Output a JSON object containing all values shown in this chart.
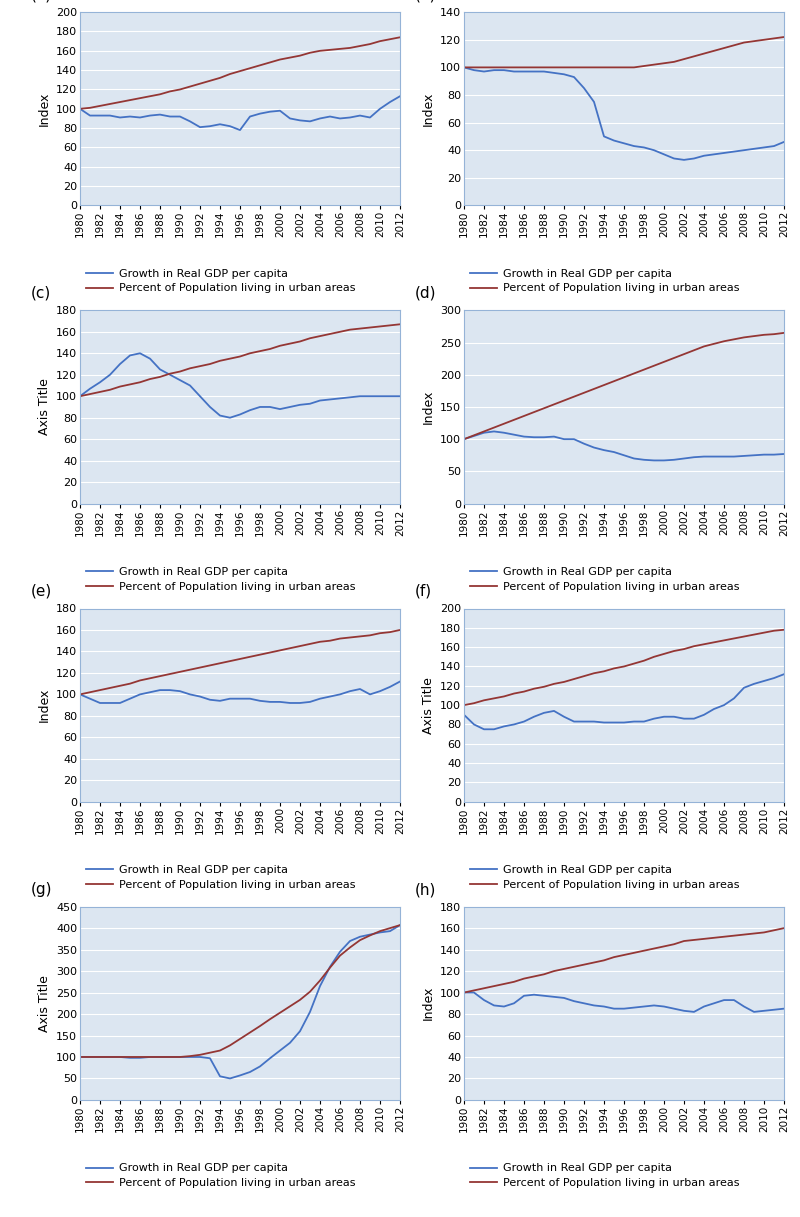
{
  "years": [
    1980,
    1981,
    1982,
    1983,
    1984,
    1985,
    1986,
    1987,
    1988,
    1989,
    1990,
    1991,
    1992,
    1993,
    1994,
    1995,
    1996,
    1997,
    1998,
    1999,
    2000,
    2001,
    2002,
    2003,
    2004,
    2005,
    2006,
    2007,
    2008,
    2009,
    2010,
    2011,
    2012
  ],
  "panels": [
    {
      "label": "a",
      "ylabel": "Index",
      "ylim": [
        0,
        200
      ],
      "yticks": [
        0,
        20,
        40,
        60,
        80,
        100,
        120,
        140,
        160,
        180,
        200
      ],
      "gdp": [
        100,
        93,
        93,
        93,
        91,
        92,
        91,
        93,
        94,
        92,
        92,
        87,
        81,
        82,
        84,
        82,
        78,
        92,
        95,
        97,
        98,
        90,
        88,
        87,
        90,
        92,
        90,
        91,
        93,
        91,
        100,
        107,
        113
      ],
      "urban": [
        100,
        101,
        103,
        105,
        107,
        109,
        111,
        113,
        115,
        118,
        120,
        123,
        126,
        129,
        132,
        136,
        139,
        142,
        145,
        148,
        151,
        153,
        155,
        158,
        160,
        161,
        162,
        163,
        165,
        167,
        170,
        172,
        174
      ]
    },
    {
      "label": "b",
      "ylabel": "Index",
      "ylim": [
        0,
        140
      ],
      "yticks": [
        0,
        20,
        40,
        60,
        80,
        100,
        120,
        140
      ],
      "gdp": [
        100,
        98,
        97,
        98,
        98,
        97,
        97,
        97,
        97,
        96,
        95,
        93,
        85,
        75,
        50,
        47,
        45,
        43,
        42,
        40,
        37,
        34,
        33,
        34,
        36,
        37,
        38,
        39,
        40,
        41,
        42,
        43,
        46
      ],
      "urban": [
        100,
        100,
        100,
        100,
        100,
        100,
        100,
        100,
        100,
        100,
        100,
        100,
        100,
        100,
        100,
        100,
        100,
        100,
        101,
        102,
        103,
        104,
        106,
        108,
        110,
        112,
        114,
        116,
        118,
        119,
        120,
        121,
        122
      ]
    },
    {
      "label": "c",
      "ylabel": "Axis Title",
      "ylim": [
        0,
        180
      ],
      "yticks": [
        0,
        20,
        40,
        60,
        80,
        100,
        120,
        140,
        160,
        180
      ],
      "gdp": [
        100,
        107,
        113,
        120,
        130,
        138,
        140,
        135,
        125,
        120,
        115,
        110,
        100,
        90,
        82,
        80,
        83,
        87,
        90,
        90,
        88,
        90,
        92,
        93,
        96,
        97,
        98,
        99,
        100,
        100,
        100,
        100,
        100
      ],
      "urban": [
        100,
        102,
        104,
        106,
        109,
        111,
        113,
        116,
        118,
        121,
        123,
        126,
        128,
        130,
        133,
        135,
        137,
        140,
        142,
        144,
        147,
        149,
        151,
        154,
        156,
        158,
        160,
        162,
        163,
        164,
        165,
        166,
        167
      ]
    },
    {
      "label": "d",
      "ylabel": "Index",
      "ylim": [
        0,
        300
      ],
      "yticks": [
        0,
        50,
        100,
        150,
        200,
        250,
        300
      ],
      "gdp": [
        100,
        105,
        110,
        112,
        110,
        107,
        104,
        103,
        103,
        104,
        100,
        100,
        93,
        87,
        83,
        80,
        75,
        70,
        68,
        67,
        67,
        68,
        70,
        72,
        73,
        73,
        73,
        73,
        74,
        75,
        76,
        76,
        77
      ],
      "urban": [
        100,
        106,
        112,
        118,
        124,
        130,
        136,
        142,
        148,
        154,
        160,
        166,
        172,
        178,
        184,
        190,
        196,
        202,
        208,
        214,
        220,
        226,
        232,
        238,
        244,
        248,
        252,
        255,
        258,
        260,
        262,
        263,
        265
      ]
    },
    {
      "label": "e",
      "ylabel": "Index",
      "ylim": [
        0,
        180
      ],
      "yticks": [
        0,
        20,
        40,
        60,
        80,
        100,
        120,
        140,
        160,
        180
      ],
      "gdp": [
        100,
        96,
        92,
        92,
        92,
        96,
        100,
        102,
        104,
        104,
        103,
        100,
        98,
        95,
        94,
        96,
        96,
        96,
        94,
        93,
        93,
        92,
        92,
        93,
        96,
        98,
        100,
        103,
        105,
        100,
        103,
        107,
        112
      ],
      "urban": [
        100,
        102,
        104,
        106,
        108,
        110,
        113,
        115,
        117,
        119,
        121,
        123,
        125,
        127,
        129,
        131,
        133,
        135,
        137,
        139,
        141,
        143,
        145,
        147,
        149,
        150,
        152,
        153,
        154,
        155,
        157,
        158,
        160
      ]
    },
    {
      "label": "f",
      "ylabel": "Axis Title",
      "ylim": [
        0,
        200
      ],
      "yticks": [
        0,
        20,
        40,
        60,
        80,
        100,
        120,
        140,
        160,
        180,
        200
      ],
      "gdp": [
        90,
        80,
        75,
        75,
        78,
        80,
        83,
        88,
        92,
        94,
        88,
        83,
        83,
        83,
        82,
        82,
        82,
        83,
        83,
        86,
        88,
        88,
        86,
        86,
        90,
        96,
        100,
        107,
        118,
        122,
        125,
        128,
        132
      ],
      "urban": [
        100,
        102,
        105,
        107,
        109,
        112,
        114,
        117,
        119,
        122,
        124,
        127,
        130,
        133,
        135,
        138,
        140,
        143,
        146,
        150,
        153,
        156,
        158,
        161,
        163,
        165,
        167,
        169,
        171,
        173,
        175,
        177,
        178
      ]
    },
    {
      "label": "g",
      "ylabel": "Axis Title",
      "ylim": [
        0,
        450
      ],
      "yticks": [
        0,
        50,
        100,
        150,
        200,
        250,
        300,
        350,
        400,
        450
      ],
      "gdp": [
        100,
        100,
        100,
        100,
        100,
        98,
        98,
        100,
        100,
        100,
        100,
        100,
        100,
        97,
        55,
        50,
        57,
        65,
        78,
        97,
        115,
        133,
        160,
        205,
        265,
        310,
        345,
        370,
        380,
        385,
        390,
        393,
        407
      ],
      "urban": [
        100,
        100,
        100,
        100,
        100,
        100,
        100,
        100,
        100,
        100,
        100,
        102,
        105,
        110,
        115,
        127,
        142,
        157,
        172,
        188,
        203,
        218,
        233,
        252,
        278,
        308,
        336,
        355,
        372,
        383,
        393,
        400,
        407
      ]
    },
    {
      "label": "h",
      "ylabel": "Index",
      "ylim": [
        0,
        180
      ],
      "yticks": [
        0,
        20,
        40,
        60,
        80,
        100,
        120,
        140,
        160,
        180
      ],
      "gdp": [
        100,
        100,
        93,
        88,
        87,
        90,
        97,
        98,
        97,
        96,
        95,
        92,
        90,
        88,
        87,
        85,
        85,
        86,
        87,
        88,
        87,
        85,
        83,
        82,
        87,
        90,
        93,
        93,
        87,
        82,
        83,
        84,
        85
      ],
      "urban": [
        100,
        102,
        104,
        106,
        108,
        110,
        113,
        115,
        117,
        120,
        122,
        124,
        126,
        128,
        130,
        133,
        135,
        137,
        139,
        141,
        143,
        145,
        148,
        149,
        150,
        151,
        152,
        153,
        154,
        155,
        156,
        158,
        160
      ]
    }
  ],
  "gdp_color": "#4472c4",
  "urban_color": "#943634",
  "gdp_label": "Growth in Real GDP per capita",
  "urban_label": "Percent of Population living in urban areas",
  "xticks": [
    1980,
    1982,
    1984,
    1986,
    1988,
    1990,
    1992,
    1994,
    1996,
    1998,
    2000,
    2002,
    2004,
    2006,
    2008,
    2010,
    2012
  ],
  "plot_bg": "#dce6f1",
  "fig_bg": "#ffffff",
  "spine_color": "#95b3d7",
  "grid_color": "#ffffff"
}
